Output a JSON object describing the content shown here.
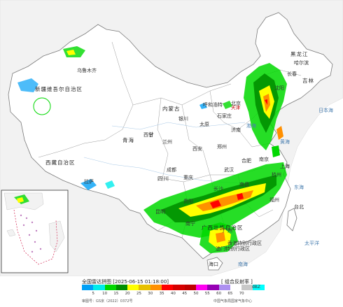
{
  "map": {
    "regions": {
      "xinjiang": "新疆维吾尔自治区",
      "xizang": "西藏自治区",
      "neimenggu": "内蒙古",
      "qinghai": "青海",
      "heilongjiang": "黑龙江",
      "jilin": "吉林",
      "gansu": "甘",
      "sichuan": "四川",
      "guangxi": "广西壮族自治区"
    },
    "cities": {
      "wulumuqi": "乌鲁木齐",
      "haerbin": "哈尔滨",
      "changchun": "长春",
      "shenyang": "沈阳",
      "huhehaote": "呼和浩特",
      "beijing": "北京",
      "tianjin": "天津",
      "shijiazhuang": "石家庄",
      "taiyuan": "太原",
      "jinan": "济南",
      "xining": "西宁",
      "lanzhou": "兰州",
      "yinchuan": "银川",
      "xian": "西安",
      "zhengzhou": "郑州",
      "hefei": "合肥",
      "nanjing": "南京",
      "shanghai": "上海",
      "hangzhou": "杭州",
      "wuhan": "武汉",
      "chengdu": "成都",
      "chongqing": "重庆",
      "changsha": "长沙",
      "nanchang": "南昌",
      "fuzhou": "福州",
      "taibei": "台北",
      "guiyang": "贵阳",
      "kunming": "昆明",
      "nanning": "南宁",
      "guangzhou": "广州",
      "xianggang": "香港特别行政区",
      "aomen": "澳门特别行政区",
      "haikou": "海口",
      "lasa": "拉萨"
    },
    "seas": {
      "bohai": "渤海",
      "huanghai": "黄海",
      "donghai": "东海",
      "nanhai": "南海",
      "taipingyang": "太平洋",
      "riben_hai": "日本海"
    }
  },
  "legend": {
    "title": "全国雷达拼图 [2025-06-15 01:18:00]",
    "product": "[ 组合反射率 ]",
    "unit": "dBZ",
    "ticks": [
      "5",
      "10",
      "15",
      "20",
      "25",
      "30",
      "35",
      "40",
      "45",
      "50",
      "55",
      "60",
      "65",
      "70"
    ],
    "colors": [
      "#01a0f6",
      "#00ecec",
      "#00d800",
      "#019000",
      "#ffff00",
      "#e7c000",
      "#ff9000",
      "#ff0000",
      "#d60000",
      "#c00000",
      "#ff00f0",
      "#9600b4",
      "#ad90f0",
      "#ffffff",
      "#c8c8c8",
      "#00ffff"
    ],
    "approval": "审图号：GS京（2022）0372号",
    "source": "中国气象局国家气象中心"
  }
}
